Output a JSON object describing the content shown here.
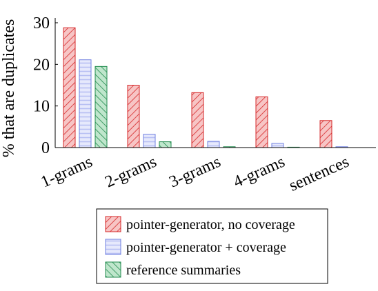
{
  "chart_data": {
    "type": "bar",
    "title": "",
    "xlabel": "",
    "ylabel": "% that are duplicates",
    "ylim": [
      0,
      30
    ],
    "yticks": [
      0,
      10,
      20,
      30
    ],
    "categories": [
      "1-grams",
      "2-grams",
      "3-grams",
      "4-grams",
      "sentences"
    ],
    "series": [
      {
        "name": "pointer-generator, no coverage",
        "color": "#d62728",
        "fill": "#f7c5c5",
        "pattern": "diagonal-hatch-right",
        "values": [
          28.8,
          15.0,
          13.2,
          12.2,
          6.5
        ]
      },
      {
        "name": "pointer-generator + coverage",
        "color": "#6f7fe0",
        "fill": "#dce0fb",
        "pattern": "horizontal-lines",
        "values": [
          21.1,
          3.2,
          1.5,
          1.0,
          0.2
        ]
      },
      {
        "name": "reference summaries",
        "color": "#1f8a4c",
        "fill": "#bfe6cc",
        "pattern": "diagonal-hatch-left",
        "values": [
          19.5,
          1.4,
          0.2,
          0.1,
          0.0
        ]
      }
    ],
    "legend_position": "bottom",
    "grid": false
  }
}
